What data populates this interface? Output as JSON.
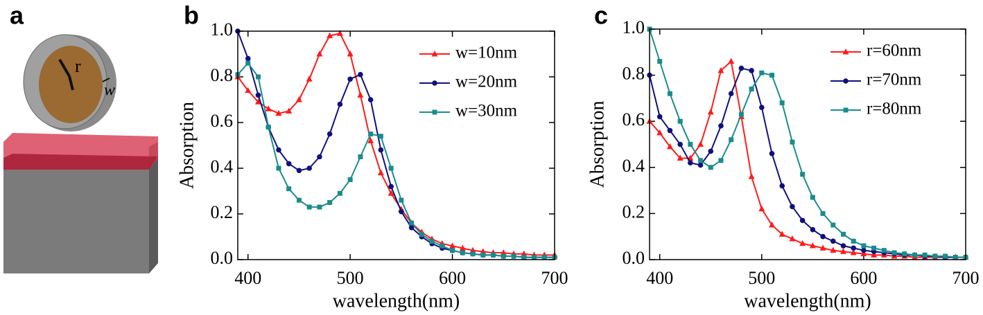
{
  "illustration": {
    "panel_label": "a",
    "labels": [
      "r",
      "w"
    ]
  },
  "chart_data": [
    {
      "type": "line",
      "panel_label": "b",
      "xlabel": "wavelength(nm)",
      "ylabel": "Absorption",
      "legend": "upper right",
      "xlim": [
        390,
        700
      ],
      "xticks": [
        400,
        500,
        600,
        700
      ],
      "ylim": [
        0,
        1.0
      ],
      "yticks": [
        {
          "value": 0,
          "label": "0.0"
        },
        0.2,
        0.4,
        0.6,
        0.8,
        {
          "value": 1.0,
          "label": "1.0"
        }
      ],
      "x": [
        390,
        400,
        410,
        420,
        430,
        440,
        450,
        460,
        470,
        480,
        490,
        500,
        510,
        520,
        530,
        540,
        550,
        560,
        570,
        580,
        590,
        600,
        610,
        620,
        630,
        640,
        650,
        660,
        670,
        680,
        690,
        700
      ],
      "series": [
        {
          "name": "w=10nm",
          "color": "#ff1a1a",
          "marker": "triangle",
          "values": [
            0.8,
            0.74,
            0.69,
            0.66,
            0.64,
            0.65,
            0.7,
            0.79,
            0.9,
            0.98,
            0.99,
            0.9,
            0.72,
            0.52,
            0.38,
            0.29,
            0.22,
            0.16,
            0.12,
            0.09,
            0.07,
            0.06,
            0.05,
            0.04,
            0.035,
            0.03,
            0.03,
            0.025,
            0.025,
            0.02,
            0.02,
            0.02
          ]
        },
        {
          "name": "w=20nm",
          "color": "#10107f",
          "marker": "circle",
          "values": [
            1.0,
            0.88,
            0.72,
            0.58,
            0.48,
            0.42,
            0.39,
            0.4,
            0.45,
            0.55,
            0.68,
            0.79,
            0.81,
            0.7,
            0.48,
            0.32,
            0.21,
            0.14,
            0.1,
            0.07,
            0.05,
            0.04,
            0.03,
            0.025,
            0.02,
            0.02,
            0.015,
            0.015,
            0.01,
            0.01,
            0.01,
            0.01
          ]
        },
        {
          "name": "w=30nm",
          "color": "#1a8c8c",
          "marker": "square",
          "values": [
            0.81,
            0.86,
            0.8,
            0.58,
            0.4,
            0.31,
            0.26,
            0.23,
            0.23,
            0.25,
            0.29,
            0.35,
            0.45,
            0.55,
            0.54,
            0.4,
            0.26,
            0.16,
            0.11,
            0.08,
            0.06,
            0.04,
            0.03,
            0.025,
            0.02,
            0.02,
            0.015,
            0.015,
            0.01,
            0.01,
            0.01,
            0.01
          ]
        }
      ]
    },
    {
      "type": "line",
      "panel_label": "c",
      "xlabel": "wavelength(nm)",
      "ylabel": "Absorption",
      "legend": "upper right",
      "xlim": [
        390,
        700
      ],
      "xticks": [
        400,
        500,
        600,
        700
      ],
      "ylim": [
        0,
        1.0
      ],
      "yticks": [
        {
          "value": 0,
          "label": "0.0"
        },
        0.2,
        0.4,
        0.6,
        0.8,
        {
          "value": 1.0,
          "label": "1.0"
        }
      ],
      "x": [
        390,
        400,
        410,
        420,
        430,
        440,
        450,
        460,
        470,
        480,
        490,
        500,
        510,
        520,
        530,
        540,
        550,
        560,
        570,
        580,
        590,
        600,
        610,
        620,
        630,
        640,
        650,
        660,
        670,
        680,
        690,
        700
      ],
      "series": [
        {
          "name": "r=60nm",
          "color": "#ff1a1a",
          "marker": "triangle",
          "values": [
            0.6,
            0.55,
            0.49,
            0.44,
            0.44,
            0.5,
            0.64,
            0.82,
            0.86,
            0.62,
            0.36,
            0.22,
            0.15,
            0.11,
            0.09,
            0.07,
            0.06,
            0.05,
            0.04,
            0.035,
            0.03,
            0.025,
            0.02,
            0.02,
            0.015,
            0.015,
            0.01,
            0.01,
            0.01,
            0.01,
            0.01,
            0.01
          ]
        },
        {
          "name": "r=70nm",
          "color": "#10107f",
          "marker": "circle",
          "values": [
            0.8,
            0.62,
            0.56,
            0.5,
            0.42,
            0.41,
            0.47,
            0.58,
            0.72,
            0.83,
            0.82,
            0.66,
            0.46,
            0.32,
            0.23,
            0.17,
            0.13,
            0.1,
            0.08,
            0.06,
            0.05,
            0.04,
            0.035,
            0.03,
            0.025,
            0.02,
            0.02,
            0.015,
            0.015,
            0.01,
            0.01,
            0.01
          ]
        },
        {
          "name": "r=80nm",
          "color": "#1a8c8c",
          "marker": "square",
          "values": [
            1.0,
            0.86,
            0.72,
            0.6,
            0.5,
            0.43,
            0.4,
            0.43,
            0.52,
            0.63,
            0.74,
            0.81,
            0.8,
            0.68,
            0.51,
            0.37,
            0.27,
            0.2,
            0.15,
            0.11,
            0.08,
            0.06,
            0.05,
            0.04,
            0.03,
            0.025,
            0.02,
            0.02,
            0.015,
            0.015,
            0.01,
            0.01
          ]
        }
      ]
    }
  ]
}
